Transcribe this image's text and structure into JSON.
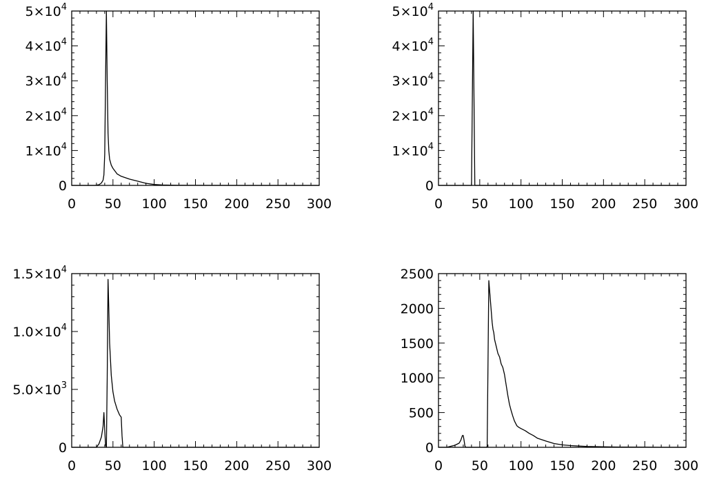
{
  "chart_data": [
    {
      "type": "line",
      "title": "",
      "xlabel": "",
      "ylabel": "",
      "xlim": [
        0,
        300
      ],
      "ylim": [
        0,
        50000
      ],
      "x_ticks": [
        0,
        50,
        100,
        150,
        200,
        250,
        300
      ],
      "x_tick_labels": [
        "0",
        "50",
        "100",
        "150",
        "200",
        "250",
        "300"
      ],
      "y_ticks": [
        0,
        10000,
        20000,
        30000,
        40000,
        50000
      ],
      "y_tick_labels": [
        {
          "mant": "0",
          "exp": ""
        },
        {
          "mant": "1×10",
          "exp": "4"
        },
        {
          "mant": "2×10",
          "exp": "4"
        },
        {
          "mant": "3×10",
          "exp": "4"
        },
        {
          "mant": "4×10",
          "exp": "4"
        },
        {
          "mant": "5×10",
          "exp": "4"
        }
      ],
      "x": [
        0,
        28,
        33,
        36,
        38,
        39,
        40,
        41,
        42,
        43,
        44,
        45,
        46,
        48,
        50,
        55,
        60,
        70,
        80,
        90,
        100,
        110,
        120,
        150,
        200,
        300
      ],
      "y": [
        0,
        0,
        200,
        700,
        1500,
        3000,
        9000,
        30000,
        50000,
        30000,
        15000,
        10000,
        7500,
        5800,
        4900,
        3300,
        2600,
        1800,
        1200,
        600,
        250,
        120,
        60,
        20,
        0,
        0
      ]
    },
    {
      "type": "line",
      "title": "",
      "xlabel": "",
      "ylabel": "",
      "xlim": [
        0,
        300
      ],
      "ylim": [
        0,
        50000
      ],
      "x_ticks": [
        0,
        50,
        100,
        150,
        200,
        250,
        300
      ],
      "x_tick_labels": [
        "0",
        "50",
        "100",
        "150",
        "200",
        "250",
        "300"
      ],
      "y_ticks": [
        0,
        10000,
        20000,
        30000,
        40000,
        50000
      ],
      "y_tick_labels": [
        {
          "mant": "0",
          "exp": ""
        },
        {
          "mant": "1×10",
          "exp": "4"
        },
        {
          "mant": "2×10",
          "exp": "4"
        },
        {
          "mant": "3×10",
          "exp": "4"
        },
        {
          "mant": "4×10",
          "exp": "4"
        },
        {
          "mant": "5×10",
          "exp": "4"
        }
      ],
      "x": [
        0,
        39,
        40,
        41,
        42,
        43,
        44,
        45,
        300
      ],
      "y": [
        0,
        0,
        0,
        25000,
        50000,
        25000,
        0,
        0,
        0
      ]
    },
    {
      "type": "line",
      "title": "",
      "xlabel": "",
      "ylabel": "",
      "xlim": [
        0,
        300
      ],
      "ylim": [
        0,
        15000
      ],
      "x_ticks": [
        0,
        50,
        100,
        150,
        200,
        250,
        300
      ],
      "x_tick_labels": [
        "0",
        "50",
        "100",
        "150",
        "200",
        "250",
        "300"
      ],
      "y_ticks": [
        0,
        5000,
        10000,
        15000
      ],
      "y_tick_labels": [
        {
          "mant": "0",
          "exp": ""
        },
        {
          "mant": "5.0×10",
          "exp": "3"
        },
        {
          "mant": "1.0×10",
          "exp": "4"
        },
        {
          "mant": "1.5×10",
          "exp": "4"
        }
      ],
      "x": [
        0,
        30,
        33,
        36,
        38,
        39,
        40,
        41,
        42,
        43,
        44,
        45,
        46,
        48,
        50,
        52,
        55,
        58,
        60,
        61,
        62,
        63,
        300
      ],
      "y": [
        0,
        0,
        300,
        900,
        1800,
        3000,
        1500,
        200,
        0,
        6000,
        14500,
        12000,
        9000,
        6200,
        4800,
        4000,
        3300,
        2800,
        2600,
        1000,
        0,
        0,
        0
      ]
    },
    {
      "type": "line",
      "title": "",
      "xlabel": "",
      "ylabel": "",
      "xlim": [
        0,
        300
      ],
      "ylim": [
        0,
        2500
      ],
      "x_ticks": [
        0,
        50,
        100,
        150,
        200,
        250,
        300
      ],
      "x_tick_labels": [
        "0",
        "50",
        "100",
        "150",
        "200",
        "250",
        "300"
      ],
      "y_ticks": [
        0,
        500,
        1000,
        1500,
        2000,
        2500
      ],
      "y_tick_labels": [
        {
          "mant": "0",
          "exp": ""
        },
        {
          "mant": "500",
          "exp": ""
        },
        {
          "mant": "1000",
          "exp": ""
        },
        {
          "mant": "1500",
          "exp": ""
        },
        {
          "mant": "2000",
          "exp": ""
        },
        {
          "mant": "2500",
          "exp": ""
        }
      ],
      "x": [
        0,
        10,
        20,
        25,
        27,
        29,
        30,
        31,
        32,
        33,
        40,
        50,
        58,
        59,
        60,
        61,
        62,
        63,
        64,
        65,
        66,
        67,
        68,
        70,
        72,
        74,
        76,
        78,
        80,
        82,
        84,
        86,
        88,
        90,
        92,
        95,
        97,
        100,
        105,
        110,
        115,
        120,
        125,
        130,
        140,
        150,
        160,
        170,
        180,
        200,
        220,
        250,
        270,
        300
      ],
      "y": [
        0,
        0,
        30,
        60,
        100,
        170,
        170,
        100,
        20,
        0,
        0,
        0,
        0,
        10,
        1200,
        2400,
        2250,
        2100,
        1950,
        1800,
        1700,
        1650,
        1550,
        1450,
        1350,
        1300,
        1200,
        1150,
        1050,
        900,
        750,
        620,
        530,
        450,
        380,
        310,
        290,
        270,
        240,
        200,
        170,
        130,
        110,
        90,
        55,
        35,
        25,
        18,
        12,
        7,
        4,
        2,
        0,
        0
      ]
    }
  ]
}
